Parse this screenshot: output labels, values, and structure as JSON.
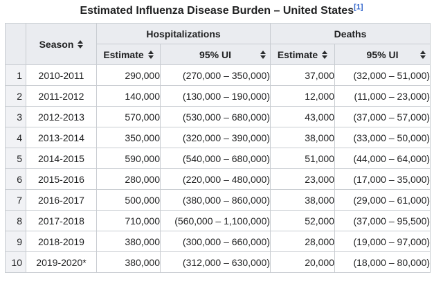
{
  "title": {
    "text": "Estimated Influenza Disease Burden – United States",
    "reference": "[1]"
  },
  "colors": {
    "header_bg": "#eaecf0",
    "row_number_bg": "#f1f2f5",
    "border_outer": "#a2a9b1",
    "border_inner": "#c8ccd1",
    "text": "#202122",
    "link": "#3366cc"
  },
  "table": {
    "season_header": "Season",
    "group_headers": [
      "Hospitalizations",
      "Deaths"
    ],
    "sub_headers": [
      "Estimate",
      "95% UI",
      "Estimate",
      "95% UI"
    ],
    "sort_icon": "sort-both-icon",
    "rows": [
      {
        "num": "1",
        "season": "2010-2011",
        "hosp_estimate": "290,000",
        "hosp_ui": "(270,000 – 350,000)",
        "deaths_estimate": "37,000",
        "deaths_ui": "(32,000 – 51,000)"
      },
      {
        "num": "2",
        "season": "2011-2012",
        "hosp_estimate": "140,000",
        "hosp_ui": "(130,000 – 190,000)",
        "deaths_estimate": "12,000",
        "deaths_ui": "(11,000 – 23,000)"
      },
      {
        "num": "3",
        "season": "2012-2013",
        "hosp_estimate": "570,000",
        "hosp_ui": "(530,000 – 680,000)",
        "deaths_estimate": "43,000",
        "deaths_ui": "(37,000 – 57,000)"
      },
      {
        "num": "4",
        "season": "2013-2014",
        "hosp_estimate": "350,000",
        "hosp_ui": "(320,000 – 390,000)",
        "deaths_estimate": "38,000",
        "deaths_ui": "(33,000 – 50,000)"
      },
      {
        "num": "5",
        "season": "2014-2015",
        "hosp_estimate": "590,000",
        "hosp_ui": "(540,000 – 680,000)",
        "deaths_estimate": "51,000",
        "deaths_ui": "(44,000 – 64,000)"
      },
      {
        "num": "6",
        "season": "2015-2016",
        "hosp_estimate": "280,000",
        "hosp_ui": "(220,000 – 480,000)",
        "deaths_estimate": "23,000",
        "deaths_ui": "(17,000 – 35,000)"
      },
      {
        "num": "7",
        "season": "2016-2017",
        "hosp_estimate": "500,000",
        "hosp_ui": "(380,000 – 860,000)",
        "deaths_estimate": "38,000",
        "deaths_ui": "(29,000 – 61,000)"
      },
      {
        "num": "8",
        "season": "2017-2018",
        "hosp_estimate": "710,000",
        "hosp_ui": "(560,000 – 1,100,000)",
        "deaths_estimate": "52,000",
        "deaths_ui": "(37,000 – 95,500)"
      },
      {
        "num": "9",
        "season": "2018-2019",
        "hosp_estimate": "380,000",
        "hosp_ui": "(300,000 – 660,000)",
        "deaths_estimate": "28,000",
        "deaths_ui": "(19,000 – 97,000)"
      },
      {
        "num": "10",
        "season": "2019-2020*",
        "hosp_estimate": "380,000",
        "hosp_ui": "(312,000 – 630,000)",
        "deaths_estimate": "20,000",
        "deaths_ui": "(18,000 – 80,000)"
      }
    ]
  }
}
